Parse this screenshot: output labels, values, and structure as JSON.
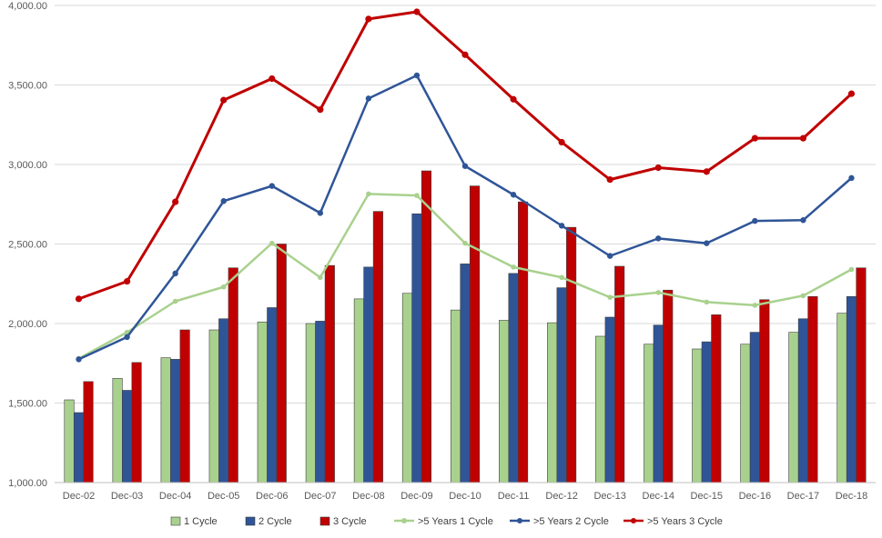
{
  "chart_data": {
    "type": "bar",
    "categories": [
      "Dec-02",
      "Dec-03",
      "Dec-04",
      "Dec-05",
      "Dec-06",
      "Dec-07",
      "Dec-08",
      "Dec-09",
      "Dec-10",
      "Dec-11",
      "Dec-12",
      "Dec-13",
      "Dec-14",
      "Dec-15",
      "Dec-16",
      "Dec-17",
      "Dec-18"
    ],
    "ylim": [
      1000,
      4000
    ],
    "yticks": [
      1000,
      1500,
      2000,
      2500,
      3000,
      3500,
      4000
    ],
    "ytick_labels": [
      "1,000.00",
      "1,500.00",
      "2,000.00",
      "2,500.00",
      "3,000.00",
      "3,500.00",
      "4,000.00"
    ],
    "grid": true,
    "legend_position": "bottom",
    "title": "",
    "xlabel": "",
    "ylabel": "",
    "bar_series": [
      {
        "name": "1 Cycle",
        "color": "#a9d18e",
        "values": [
          1520,
          1655,
          1785,
          1960,
          2010,
          2000,
          2155,
          2190,
          2085,
          2020,
          2005,
          1920,
          1870,
          1840,
          1870,
          1945,
          2065
        ]
      },
      {
        "name": "2 Cycle",
        "color": "#2f5597",
        "values": [
          1440,
          1580,
          1775,
          2030,
          2100,
          2015,
          2355,
          2690,
          2375,
          2315,
          2225,
          2040,
          1990,
          1885,
          1945,
          2030,
          2170
        ]
      },
      {
        "name": "3 Cycle",
        "color": "#c00000",
        "values": [
          1635,
          1755,
          1960,
          2350,
          2500,
          2365,
          2705,
          2960,
          2865,
          2765,
          2605,
          2360,
          2210,
          2055,
          2150,
          2170,
          2350
        ]
      }
    ],
    "line_series": [
      {
        "name": ">5 Years 1 Cycle",
        "color": "#a9d18e",
        "values": [
          1780,
          1945,
          2140,
          2230,
          2505,
          2290,
          2815,
          2805,
          2505,
          2355,
          2290,
          2165,
          2195,
          2135,
          2115,
          2175,
          2340
        ]
      },
      {
        "name": ">5 Years 2 Cycle",
        "color": "#2f5597",
        "values": [
          1775,
          1915,
          2315,
          2770,
          2865,
          2695,
          3415,
          3560,
          2990,
          2810,
          2615,
          2425,
          2535,
          2505,
          2645,
          2650,
          2915
        ]
      },
      {
        "name": ">5 Years 3 Cycle",
        "color": "#c00000",
        "values": [
          2155,
          2265,
          2765,
          3405,
          3540,
          3345,
          3915,
          3960,
          3690,
          3410,
          3140,
          2905,
          2980,
          2955,
          3165,
          3165,
          3445
        ]
      }
    ]
  }
}
